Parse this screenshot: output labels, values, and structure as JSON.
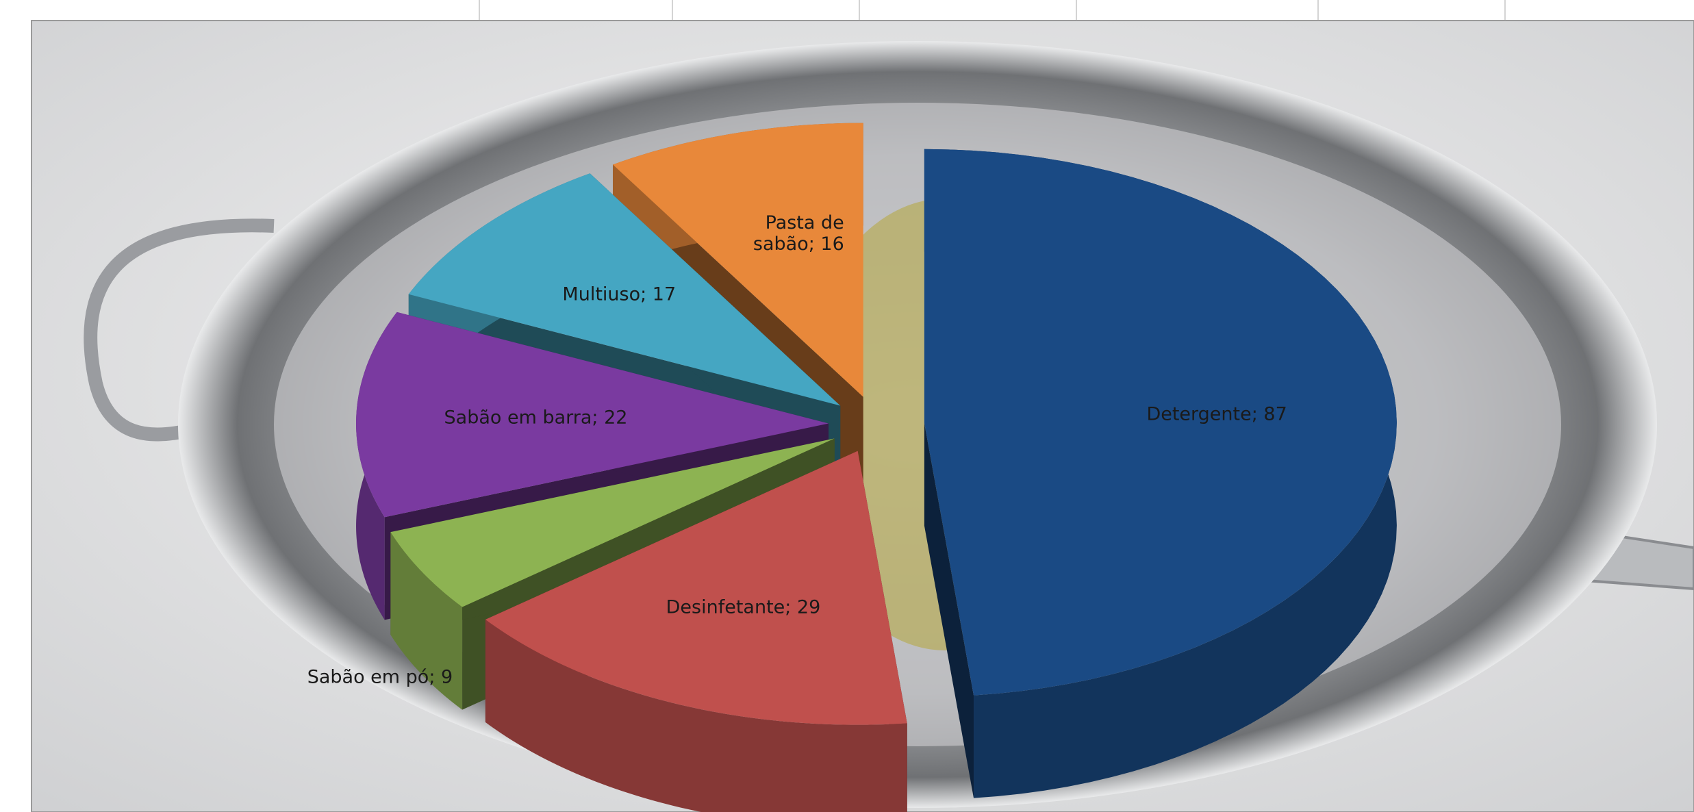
{
  "chart_data": {
    "type": "pie3d",
    "values": [
      87,
      29,
      9,
      22,
      17,
      16
    ],
    "value_labels": [
      "Detergente; 87",
      "Desinfetante; 29",
      "Sabão em pó; 9",
      "Sabão em barra; 22",
      "Multiuso; 17",
      "Pasta de sabão; 16"
    ],
    "colors": [
      "#1a4a84",
      "#c0504d",
      "#8db352",
      "#7a3aa0",
      "#45a6c2",
      "#e8883a"
    ],
    "exploded": true
  }
}
